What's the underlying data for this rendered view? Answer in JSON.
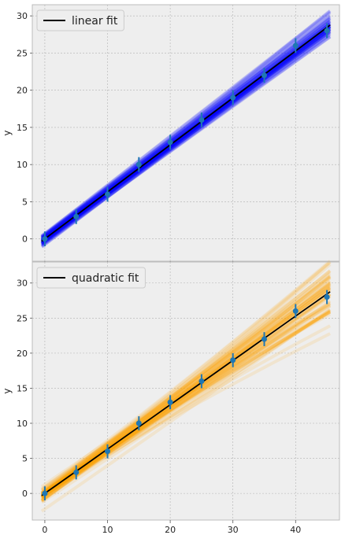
{
  "chart_data": [
    {
      "type": "line",
      "ylabel": "y",
      "xlim": [
        -2,
        47
      ],
      "ylim": [
        -3.0,
        31.5
      ],
      "xticks": [
        0,
        10,
        20,
        30,
        40
      ],
      "xtick_labels_visible": false,
      "yticks": [
        0,
        5,
        10,
        15,
        20,
        25,
        30
      ],
      "grid": true,
      "legend": {
        "label": "linear fit",
        "position": "top-left"
      },
      "band_color": "#0000ff",
      "fit_color": "#000000",
      "fit": {
        "slope": 0.632,
        "intercept": 0.0
      },
      "data_points": {
        "x": [
          0,
          5,
          10,
          15,
          20,
          25,
          30,
          35,
          40,
          45
        ],
        "y": [
          0,
          3,
          6,
          10,
          13,
          16,
          19,
          22,
          26,
          28
        ],
        "yerr": [
          1.0,
          1.0,
          1.0,
          1.0,
          1.0,
          1.0,
          1.0,
          1.0,
          1.0,
          1.0
        ],
        "color": "#1f77b4"
      }
    },
    {
      "type": "line",
      "ylabel": "y",
      "xlim": [
        -2,
        47
      ],
      "ylim": [
        -3.8,
        33.0
      ],
      "xticks": [
        0,
        10,
        20,
        30,
        40
      ],
      "yticks": [
        0,
        5,
        10,
        15,
        20,
        25,
        30
      ],
      "grid": true,
      "legend": {
        "label": "quadratic fit",
        "position": "top-left"
      },
      "band_color": "#ffa500",
      "fit_color": "#000000",
      "fit": {
        "a": 0.0,
        "b": 0.632,
        "c": 0.0
      },
      "data_points": {
        "x": [
          0,
          5,
          10,
          15,
          20,
          25,
          30,
          35,
          40,
          45
        ],
        "y": [
          0,
          3,
          6,
          10,
          13,
          16,
          19,
          22,
          26,
          28
        ],
        "yerr": [
          1.0,
          1.0,
          1.0,
          1.0,
          1.0,
          1.0,
          1.0,
          1.0,
          1.0,
          1.0
        ],
        "color": "#1f77b4"
      }
    }
  ]
}
